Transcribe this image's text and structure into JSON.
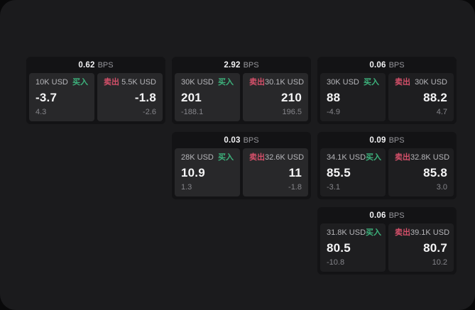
{
  "labels": {
    "bps_unit": "BPS",
    "buy": "买入",
    "sell": "卖出"
  },
  "colors": {
    "buy_green": "#3db27c",
    "sell_red": "#d5506a",
    "panel_bg": "#1b1b1d",
    "card_bg": "#131315",
    "tile_bg": "#28282a",
    "tile_bg_dim": "#1e1e20"
  },
  "cards": [
    {
      "bps": "0.62",
      "buy": {
        "amount": "10K USD",
        "price": "-3.7",
        "delta": "4.3"
      },
      "sell": {
        "amount": "5.5K USD",
        "price": "-1.8",
        "delta": "-2.6"
      }
    },
    {
      "bps": "2.92",
      "buy": {
        "amount": "30K USD",
        "price": "201",
        "delta": "-188.1"
      },
      "sell": {
        "amount": "30.1K USD",
        "price": "210",
        "delta": "196.5"
      }
    },
    {
      "bps": "0.06",
      "buy": {
        "amount": "30K USD",
        "price": "88",
        "delta": "-4.9"
      },
      "sell": {
        "amount": "30K USD",
        "price": "88.2",
        "delta": "4.7"
      }
    },
    {
      "bps": "0.03",
      "buy": {
        "amount": "28K USD",
        "price": "10.9",
        "delta": "1.3"
      },
      "sell": {
        "amount": "32.6K USD",
        "price": "11",
        "delta": "-1.8"
      }
    },
    {
      "bps": "0.09",
      "buy": {
        "amount": "34.1K USD",
        "price": "85.5",
        "delta": "-3.1"
      },
      "sell": {
        "amount": "32.8K USD",
        "price": "85.8",
        "delta": "3.0"
      }
    },
    {
      "bps": "0.06",
      "buy": {
        "amount": "31.8K USD",
        "price": "80.5",
        "delta": "-10.8"
      },
      "sell": {
        "amount": "39.1K USD",
        "price": "80.7",
        "delta": "10.2"
      }
    }
  ]
}
